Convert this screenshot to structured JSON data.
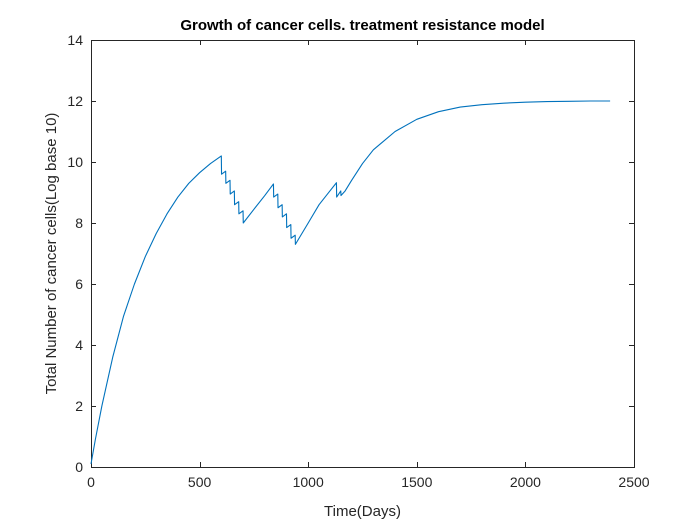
{
  "chart_data": {
    "type": "line",
    "title": "Growth of cancer cells. treatment resistance model",
    "xlabel": "Time(Days)",
    "ylabel": "Total Number of cancer cells(Log base 10)",
    "xlim": [
      0,
      2500
    ],
    "ylim": [
      0,
      14
    ],
    "xticks": [
      0,
      500,
      1000,
      1500,
      2000,
      2500
    ],
    "yticks": [
      0,
      2,
      4,
      6,
      8,
      10,
      12,
      14
    ],
    "grid": false,
    "line_color": "#0072BD",
    "series": [
      {
        "x": [
          0,
          20,
          50,
          100,
          150,
          200,
          250,
          300,
          350,
          400,
          450,
          500,
          550,
          600,
          601,
          620,
          621,
          640,
          641,
          660,
          661,
          680,
          681,
          700,
          701,
          750,
          800,
          840,
          841,
          860,
          861,
          880,
          881,
          900,
          901,
          920,
          921,
          940,
          941,
          1000,
          1050,
          1100,
          1130,
          1131,
          1150,
          1151,
          1170,
          1200,
          1250,
          1300,
          1400,
          1500,
          1600,
          1700,
          1800,
          1900,
          2000,
          2100,
          2200,
          2300,
          2390
        ],
        "y": [
          0.1,
          0.9,
          2.0,
          3.6,
          4.95,
          6.0,
          6.9,
          7.65,
          8.3,
          8.85,
          9.3,
          9.65,
          9.95,
          10.2,
          9.6,
          9.7,
          9.3,
          9.4,
          8.95,
          9.05,
          8.6,
          8.7,
          8.3,
          8.4,
          8.0,
          8.45,
          8.9,
          9.28,
          8.85,
          8.95,
          8.5,
          8.6,
          8.2,
          8.3,
          7.85,
          7.95,
          7.5,
          7.6,
          7.3,
          8.0,
          8.6,
          9.05,
          9.32,
          8.85,
          9.05,
          8.9,
          9.05,
          9.4,
          9.95,
          10.4,
          11.0,
          11.4,
          11.65,
          11.8,
          11.88,
          11.93,
          11.96,
          11.98,
          11.99,
          12.0,
          12.0
        ]
      }
    ]
  }
}
